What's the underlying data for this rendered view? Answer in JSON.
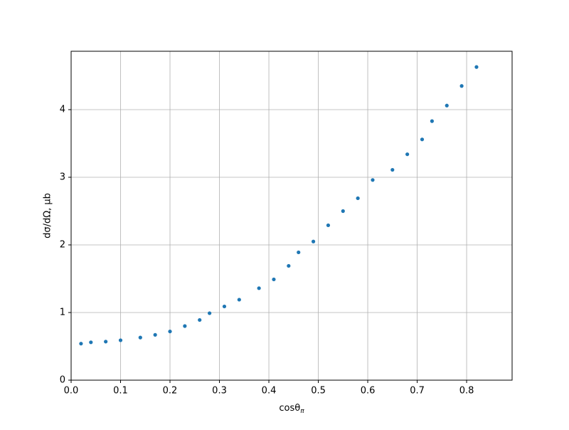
{
  "chart_data": {
    "type": "scatter",
    "xlabel": "cosθ",
    "xlabel_sub": "π",
    "ylabel": "dσ/dΩ, μb",
    "x": [
      0.02,
      0.04,
      0.07,
      0.1,
      0.14,
      0.17,
      0.2,
      0.23,
      0.26,
      0.28,
      0.31,
      0.34,
      0.38,
      0.41,
      0.44,
      0.46,
      0.49,
      0.52,
      0.55,
      0.58,
      0.61,
      0.65,
      0.68,
      0.71,
      0.73,
      0.76,
      0.79,
      0.82
    ],
    "series": [
      {
        "color": "#1f77b4",
        "values": [
          0.54,
          0.56,
          0.57,
          0.59,
          0.63,
          0.67,
          0.72,
          0.8,
          0.89,
          0.99,
          1.09,
          1.19,
          1.36,
          1.49,
          1.69,
          1.89,
          2.05,
          2.29,
          2.5,
          2.69,
          2.96,
          3.11,
          3.34,
          3.56,
          3.83,
          4.06,
          4.35,
          4.63
        ]
      }
    ],
    "xlim": [
      0,
      0.892
    ],
    "ylim": [
      0,
      4.863
    ],
    "xticks": [
      {
        "value": 0,
        "label": "0.0"
      },
      0.1,
      0.2,
      0.3,
      0.4,
      0.5,
      0.6,
      0.7,
      0.8
    ],
    "yticks": [
      0,
      1,
      2,
      3,
      4
    ],
    "grid": true
  }
}
